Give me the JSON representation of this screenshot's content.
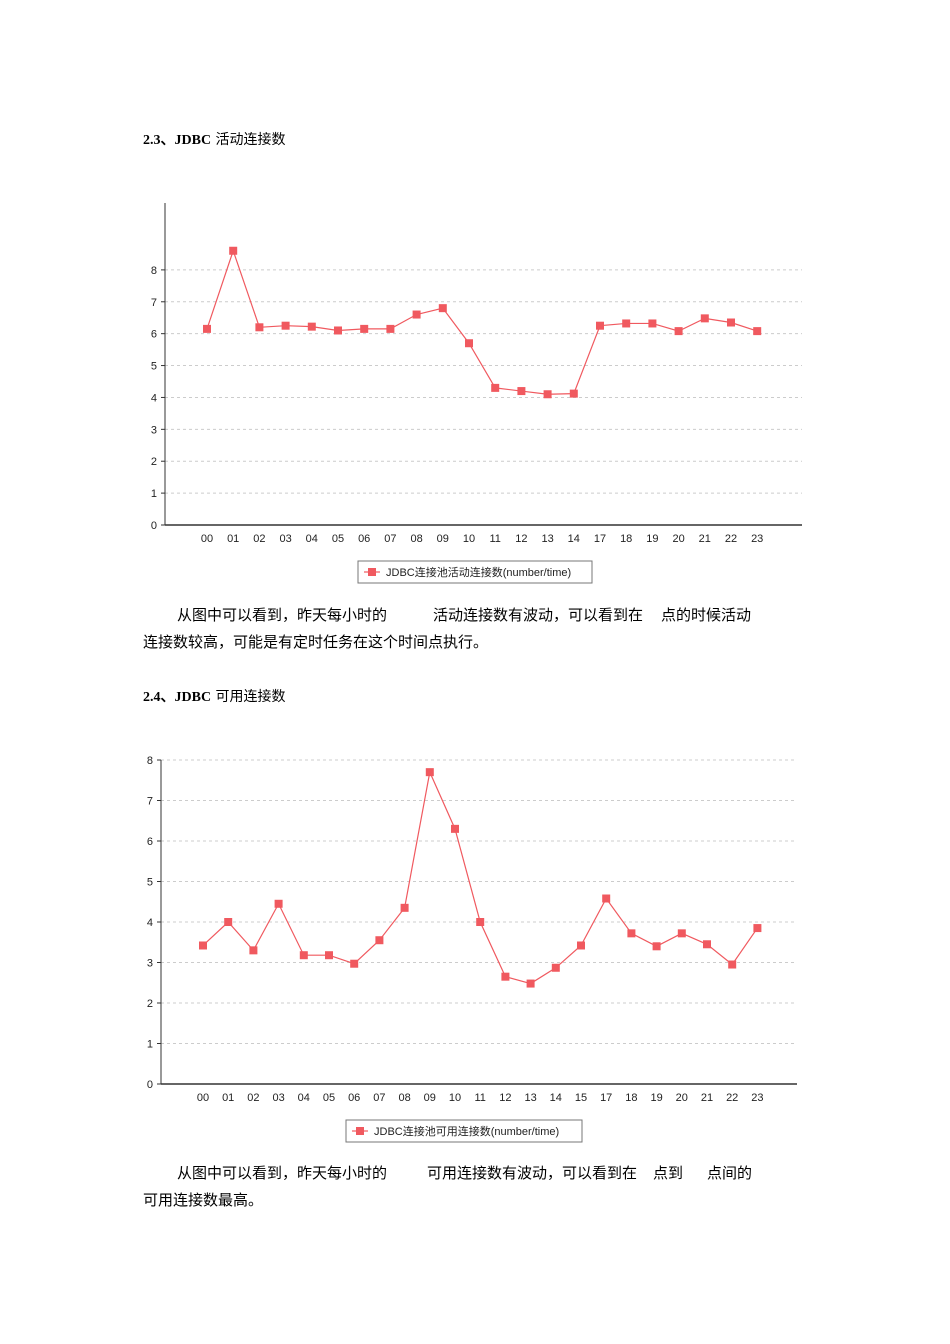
{
  "section1": {
    "number": "2.3、JDBC",
    "title": "活动连接数",
    "paragraph": {
      "line1_a": "从图中可以看到，昨天每小时的",
      "line1_b": "活动连接数有波动，可以看到在",
      "line1_c": "点的时候活动",
      "line2": "连接数较高，可能是有定时任务在这个时间点执行。"
    }
  },
  "section2": {
    "number": "2.4、JDBC",
    "title": "可用连接数",
    "paragraph": {
      "line1_a": "从图中可以看到，昨天每小时的",
      "line1_b": "可用连接数有波动，可以看到在",
      "line1_c": "点到",
      "line1_d": "点间的",
      "line2": "可用连接数最高。"
    }
  },
  "colors": {
    "series": "#f0595f",
    "grid": "#cccccc",
    "axis": "#333333"
  },
  "chart_data": [
    {
      "type": "line",
      "categories": [
        "00",
        "01",
        "02",
        "03",
        "04",
        "05",
        "06",
        "07",
        "08",
        "09",
        "10",
        "11",
        "12",
        "13",
        "14",
        "17",
        "18",
        "19",
        "20",
        "21",
        "22",
        "23"
      ],
      "series": [
        {
          "name": "JDBC连接池活动连接数(number/time)",
          "values": [
            6.15,
            8.6,
            6.2,
            6.25,
            6.22,
            6.1,
            6.15,
            6.15,
            6.6,
            6.8,
            5.7,
            4.3,
            4.2,
            4.1,
            4.12,
            6.25,
            6.32,
            6.32,
            6.08,
            6.48,
            6.35,
            6.08
          ]
        }
      ],
      "ylim": [
        0,
        9
      ],
      "yticks": [
        0,
        1,
        2,
        3,
        4,
        5,
        6,
        7,
        8
      ],
      "grid": true,
      "legend": "bottom"
    },
    {
      "type": "line",
      "categories": [
        "00",
        "01",
        "02",
        "03",
        "04",
        "05",
        "06",
        "07",
        "08",
        "09",
        "10",
        "11",
        "12",
        "13",
        "14",
        "15",
        "17",
        "18",
        "19",
        "20",
        "21",
        "22",
        "23"
      ],
      "series": [
        {
          "name": "JDBC连接池可用连接数(number/time)",
          "values": [
            3.42,
            4.0,
            3.3,
            4.45,
            3.18,
            3.18,
            2.97,
            3.55,
            4.35,
            7.7,
            6.3,
            4.0,
            2.65,
            2.48,
            2.87,
            3.42,
            4.58,
            3.72,
            3.4,
            3.72,
            3.45,
            2.95,
            3.85
          ]
        }
      ],
      "ylim": [
        0,
        8
      ],
      "yticks": [
        0,
        1,
        2,
        3,
        4,
        5,
        6,
        7,
        8
      ],
      "grid": true,
      "legend": "bottom"
    }
  ]
}
